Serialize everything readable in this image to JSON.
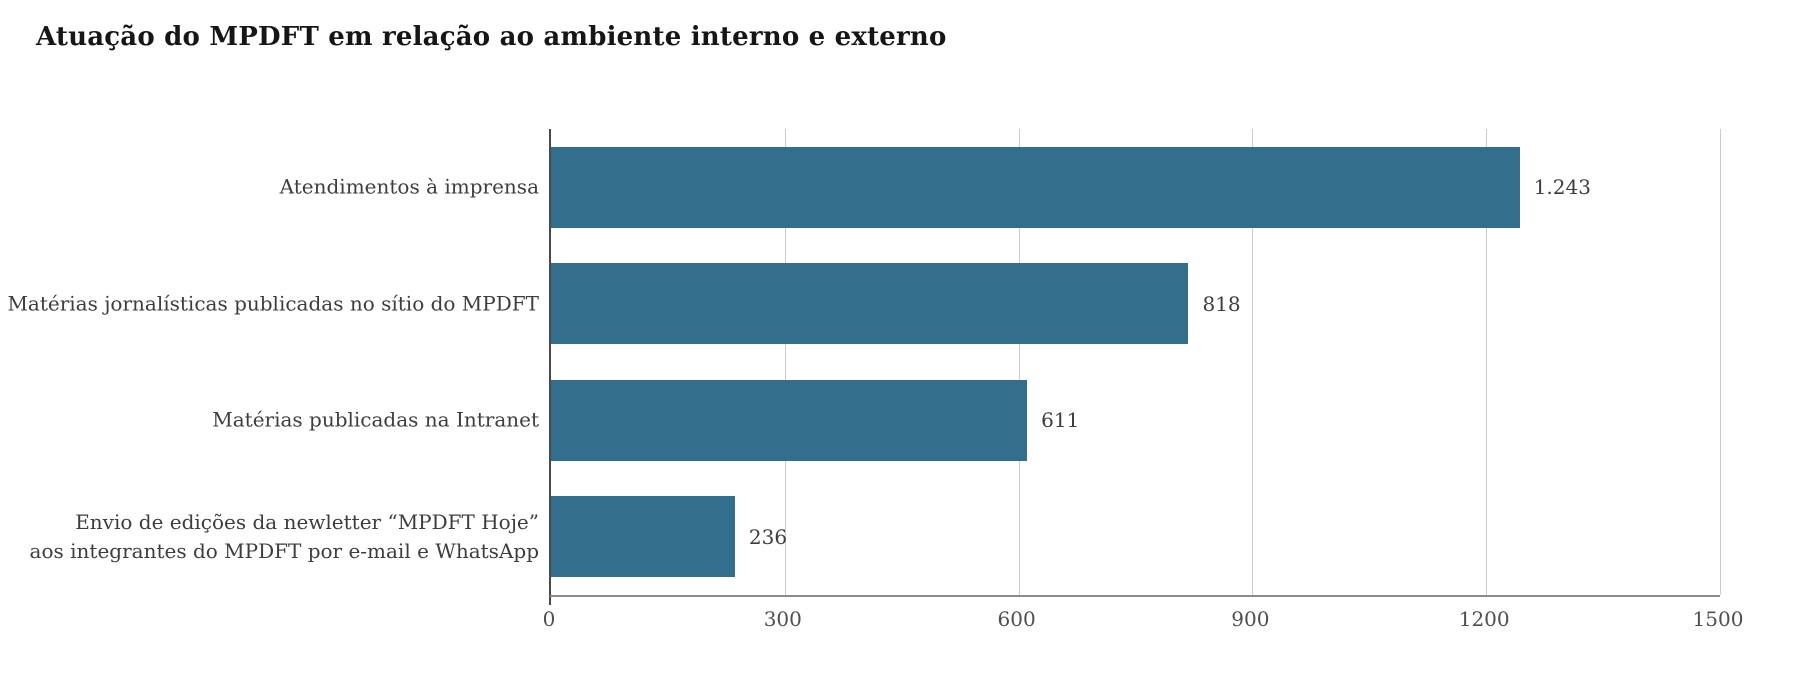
{
  "title": "Atuação do MPDFT em relação ao ambiente interno e externo",
  "colors": {
    "bar": "#336e8d",
    "title_text": "#161616",
    "label_text": "#3d3d3d",
    "tick_text": "#4f4f4f",
    "gridline": "#cccccc",
    "axis_left": "#4a4a4a",
    "axis_bottom": "#8a8a8a"
  },
  "chart_data": {
    "type": "bar",
    "orientation": "horizontal",
    "title": "Atuação do MPDFT em relação ao ambiente interno e externo",
    "categories": [
      "Atendimentos à imprensa",
      "Matérias jornalísticas publicadas no sítio do MPDFT",
      "Matérias publicadas na Intranet",
      "Envio de edições da newletter “MPDFT Hoje”\naos integrantes do MPDFT por e-mail e WhatsApp"
    ],
    "values": [
      1243,
      818,
      611,
      236
    ],
    "value_labels": [
      "1.243",
      "818",
      "611",
      "236"
    ],
    "xlabel": "",
    "ylabel": "",
    "xlim": [
      0,
      1500
    ],
    "x_ticks": [
      0,
      300,
      600,
      900,
      1200,
      1500
    ],
    "x_tick_labels": [
      "0",
      "300",
      "600",
      "900",
      "1200",
      "1500"
    ],
    "grid": true,
    "legend": false
  }
}
